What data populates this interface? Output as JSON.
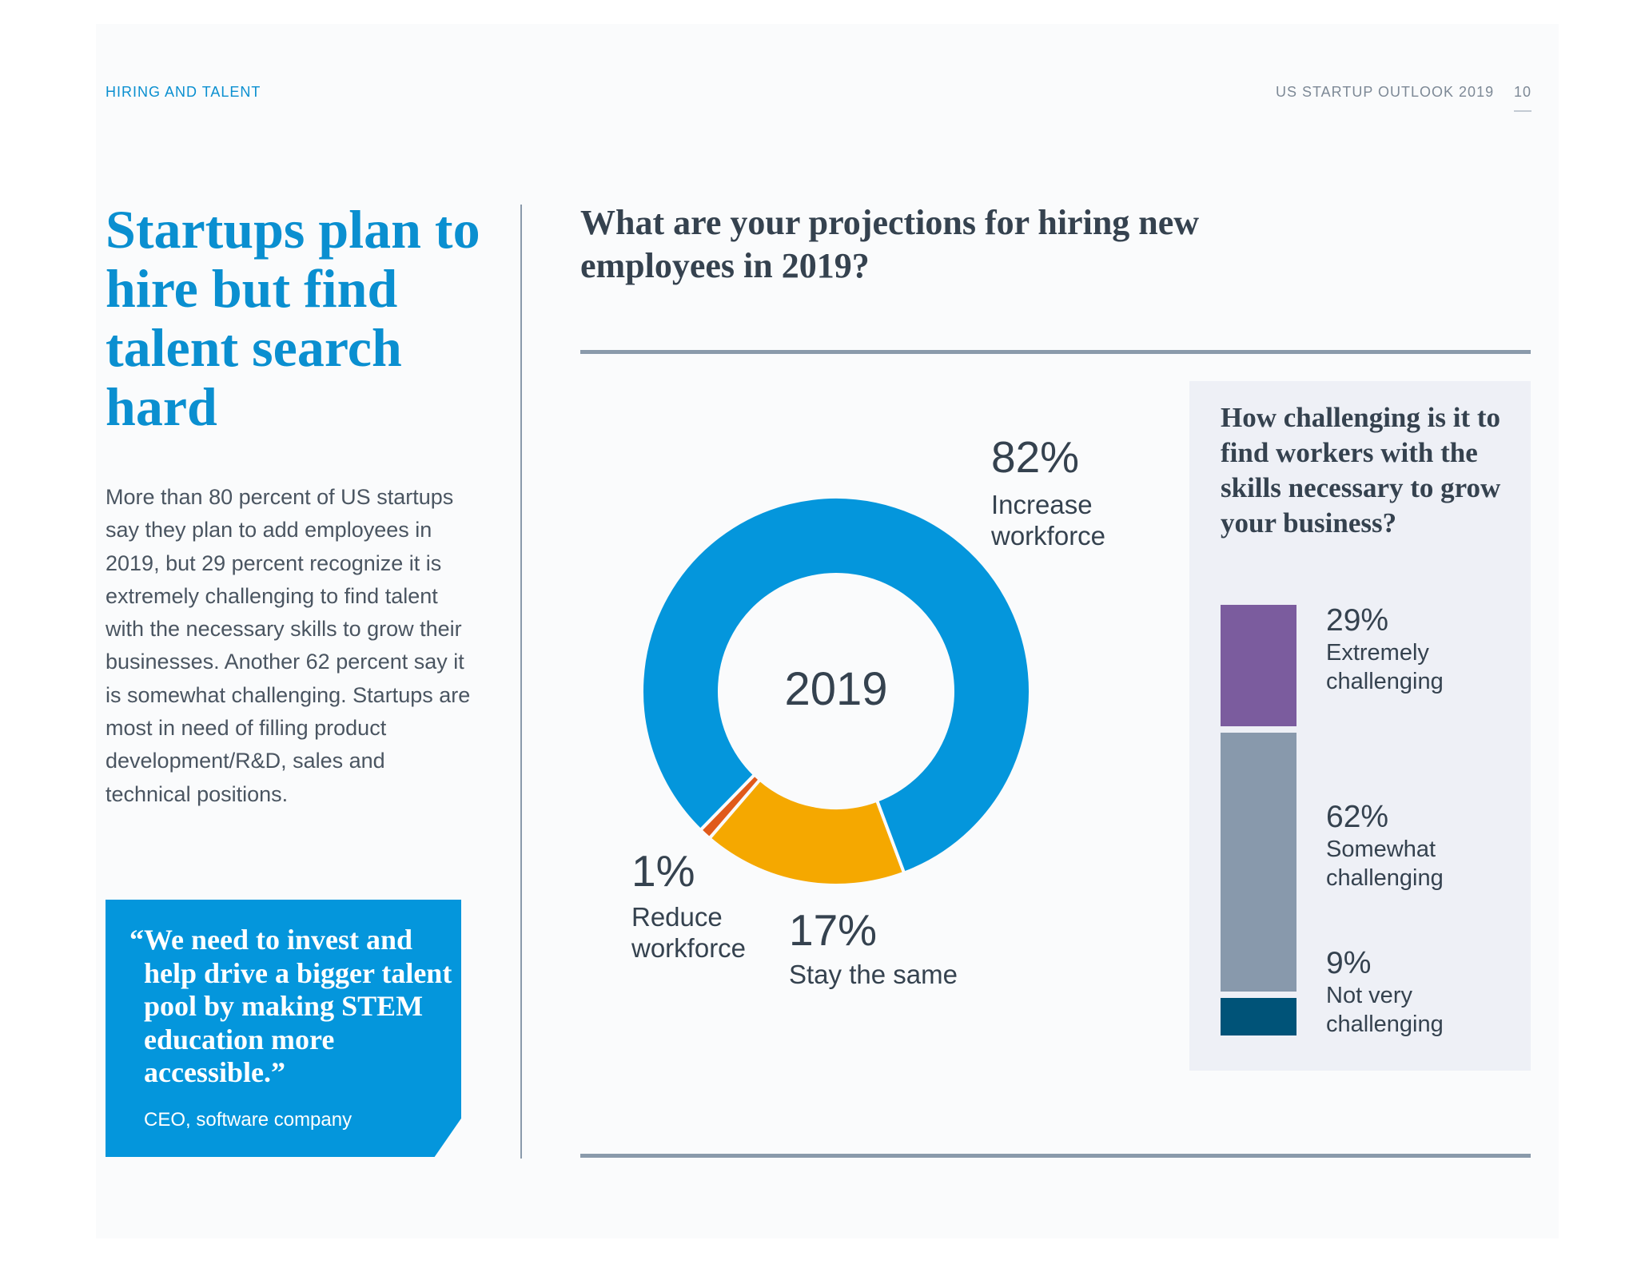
{
  "header": {
    "section": "HIRING AND TALENT",
    "publication": "US STARTUP OUTLOOK 2019",
    "page_number": "10"
  },
  "left": {
    "title": "Startups plan to hire but find talent search hard",
    "body": "More than 80 percent of US startups say they plan to add employees in 2019, but 29 percent recognize it is extremely challenging to find talent with the necessary skills to grow their businesses. Another 62 percent say it is somewhat challenging. Startups are most in need of filling product development/R&D, sales and technical positions.",
    "quote": "“We need to invest and help drive a bigger talent pool by making STEM education more accessible.”",
    "quote_attribution": "CEO, software company"
  },
  "chart_data": [
    {
      "type": "pie",
      "title": "What are your projections for hiring new employees in 2019?",
      "center_label": "2019",
      "slices": [
        {
          "label": "Stay the same",
          "value": 17,
          "display": "17%",
          "color": "#f5a800"
        },
        {
          "label": "Reduce workforce",
          "value": 1,
          "display": "1%",
          "color": "#e05a1a"
        },
        {
          "label": "Increase workforce",
          "value": 82,
          "display": "82%",
          "color": "#0496dc"
        }
      ]
    },
    {
      "type": "bar",
      "stacked": true,
      "title": "How challenging is it to find workers with the skills necessary to grow your business?",
      "segments": [
        {
          "label": "Extremely challenging",
          "value": 29,
          "display": "29%",
          "color": "#7b5c9e"
        },
        {
          "label": "Somewhat challenging",
          "value": 62,
          "display": "62%",
          "color": "#8899ac"
        },
        {
          "label": "Not very challenging",
          "value": 9,
          "display": "9%",
          "color": "#005378"
        }
      ]
    }
  ]
}
